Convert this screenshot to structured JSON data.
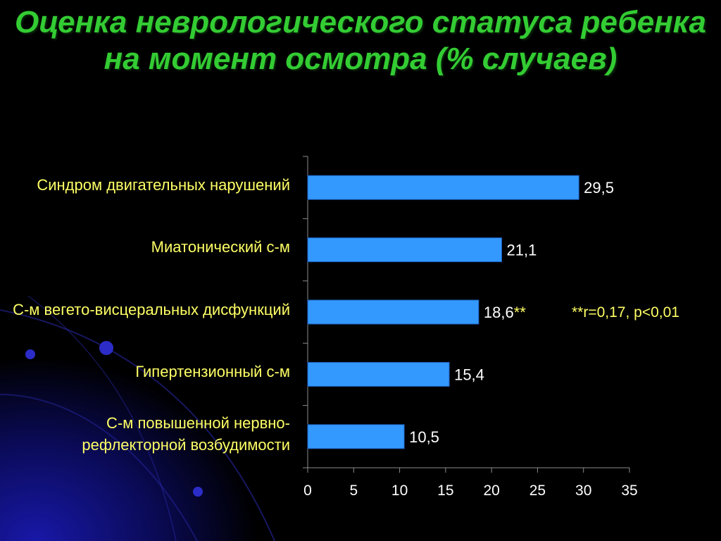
{
  "title": "Оценка неврологического статуса ребенка на момент осмотра (% случаев)",
  "note": "**r=0,17, p<0,01",
  "chart_data": {
    "type": "bar",
    "orientation": "horizontal",
    "categories": [
      "Синдром двигательных нарушений",
      "Миатонический с-м",
      "С-м вегето-висцеральных дисфункций",
      "Гипертензионный с-м",
      "С-м повышенной нервно-рефлекторной возбудимости"
    ],
    "values": [
      29.5,
      21.1,
      18.6,
      15.4,
      10.5
    ],
    "data_labels": [
      "29,5",
      "21,1",
      "18,6",
      "15,4",
      "10,5"
    ],
    "data_label_marks": [
      "",
      "",
      "**",
      "",
      ""
    ],
    "xlim": [
      0,
      35
    ],
    "x_ticks": [
      0,
      5,
      10,
      15,
      20,
      25,
      30,
      35
    ],
    "grid": false,
    "colors": {
      "bar": "#3399ff",
      "bar_edge": "#1f5fbf",
      "axis": "#8c8c8c",
      "tick_text": "#ffffff",
      "category_text": "#ffff66",
      "value_text": "#ffffff",
      "mark_text": "#ffff66",
      "title": "#33cc33"
    }
  }
}
